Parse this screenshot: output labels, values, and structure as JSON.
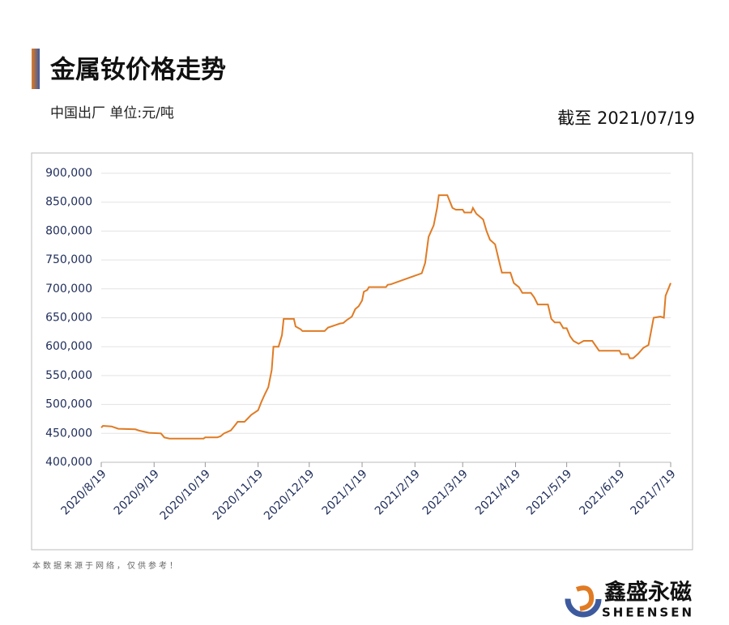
{
  "chart_data": {
    "type": "line",
    "title": "金属钕价格走势",
    "subtitle": "中国出厂  单位:元/吨",
    "date_note": "截至 2021/07/19",
    "source_note": "本数据来源于网络，仅供参考！",
    "x": [
      "2020/8/19",
      "2020/8/20",
      "2020/8/25",
      "2020/8/29",
      "2020/9/8",
      "2020/9/10",
      "2020/9/16",
      "2020/9/23",
      "2020/9/25",
      "2020/9/28",
      "2020/10/18",
      "2020/10/19",
      "2020/10/26",
      "2020/10/28",
      "2020/10/30",
      "2020/11/3",
      "2020/11/6",
      "2020/11/7",
      "2020/11/11",
      "2020/11/13",
      "2020/11/15",
      "2020/11/17",
      "2020/11/19",
      "2020/11/21",
      "2020/11/23",
      "2020/11/25",
      "2020/11/27",
      "2020/11/28",
      "2020/12/1",
      "2020/12/3",
      "2020/12/4",
      "2020/12/10",
      "2020/12/11",
      "2020/12/14",
      "2020/12/15",
      "2020/12/28",
      "2020/12/30",
      "2021/1/3",
      "2021/1/6",
      "2021/1/8",
      "2021/1/10",
      "2021/1/13",
      "2021/1/15",
      "2021/1/17",
      "2021/1/19",
      "2021/1/20",
      "2021/1/22",
      "2021/1/23",
      "2021/2/2",
      "2021/2/3",
      "2021/2/5",
      "2021/2/23",
      "2021/2/25",
      "2021/2/27",
      "2021/3/2",
      "2021/3/4",
      "2021/3/5",
      "2021/3/10",
      "2021/3/13",
      "2021/3/15",
      "2021/3/19",
      "2021/3/20",
      "2021/3/24",
      "2021/3/25",
      "2021/3/27",
      "2021/3/31",
      "2021/4/2",
      "2021/4/4",
      "2021/4/7",
      "2021/4/10",
      "2021/4/11",
      "2021/4/16",
      "2021/4/18",
      "2021/4/21",
      "2021/4/23",
      "2021/4/28",
      "2021/4/30",
      "2021/5/2",
      "2021/5/8",
      "2021/5/10",
      "2021/5/12",
      "2021/5/15",
      "2021/5/17",
      "2021/5/19",
      "2021/5/21",
      "2021/5/23",
      "2021/5/26",
      "2021/5/29",
      "2021/6/3",
      "2021/6/7",
      "2021/6/19",
      "2021/6/20",
      "2021/6/24",
      "2021/6/25",
      "2021/6/27",
      "2021/6/30",
      "2021/7/3",
      "2021/7/6",
      "2021/7/9",
      "2021/7/13",
      "2021/7/15",
      "2021/7/16",
      "2021/7/19"
    ],
    "series": [
      {
        "color": "#e07b24",
        "values": [
          460000,
          463000,
          462000,
          458000,
          457000,
          455000,
          451000,
          450000,
          443000,
          441000,
          441000,
          443000,
          443000,
          445000,
          450000,
          455000,
          466000,
          470000,
          470000,
          476000,
          482000,
          486000,
          490000,
          505000,
          518000,
          530000,
          560000,
          600000,
          600000,
          620000,
          648000,
          648000,
          635000,
          630000,
          627000,
          627000,
          633000,
          637000,
          640000,
          641000,
          646000,
          652000,
          665000,
          670000,
          680000,
          695000,
          698000,
          703000,
          703000,
          707000,
          708000,
          727000,
          745000,
          790000,
          810000,
          840000,
          862000,
          862000,
          840000,
          837000,
          837000,
          832000,
          832000,
          840000,
          830000,
          820000,
          800000,
          785000,
          777000,
          740000,
          728000,
          728000,
          710000,
          703000,
          693000,
          693000,
          685000,
          673000,
          673000,
          648000,
          642000,
          642000,
          632000,
          632000,
          618000,
          610000,
          605000,
          610000,
          610000,
          593000,
          593000,
          587000,
          587000,
          580000,
          580000,
          588000,
          598000,
          603000,
          650000,
          652000,
          650000,
          688000,
          710000
        ]
      }
    ],
    "xlim": [
      "2020/8/19",
      "2021/7/19"
    ],
    "xticks": [
      "2020/8/19",
      "2020/9/19",
      "2020/10/19",
      "2020/11/19",
      "2020/12/19",
      "2021/1/19",
      "2021/2/19",
      "2021/3/19",
      "2021/4/19",
      "2021/5/19",
      "2021/6/19",
      "2021/7/19"
    ],
    "ylim": [
      400000,
      900000
    ],
    "yticks": [
      {
        "value": 400000,
        "label": "400,000"
      },
      {
        "value": 450000,
        "label": "450,000"
      },
      {
        "value": 500000,
        "label": "500,000"
      },
      {
        "value": 550000,
        "label": "550,000"
      },
      {
        "value": 600000,
        "label": "600,000"
      },
      {
        "value": 650000,
        "label": "650,000"
      },
      {
        "value": 700000,
        "label": "700,000"
      },
      {
        "value": 750000,
        "label": "750,000"
      },
      {
        "value": 800000,
        "label": "800,000"
      },
      {
        "value": 850000,
        "label": "850,000"
      },
      {
        "value": 900000,
        "label": "900,000"
      }
    ],
    "grid": true
  },
  "logo": {
    "name": "鑫盛永磁",
    "sub": "SHEENSEN"
  }
}
